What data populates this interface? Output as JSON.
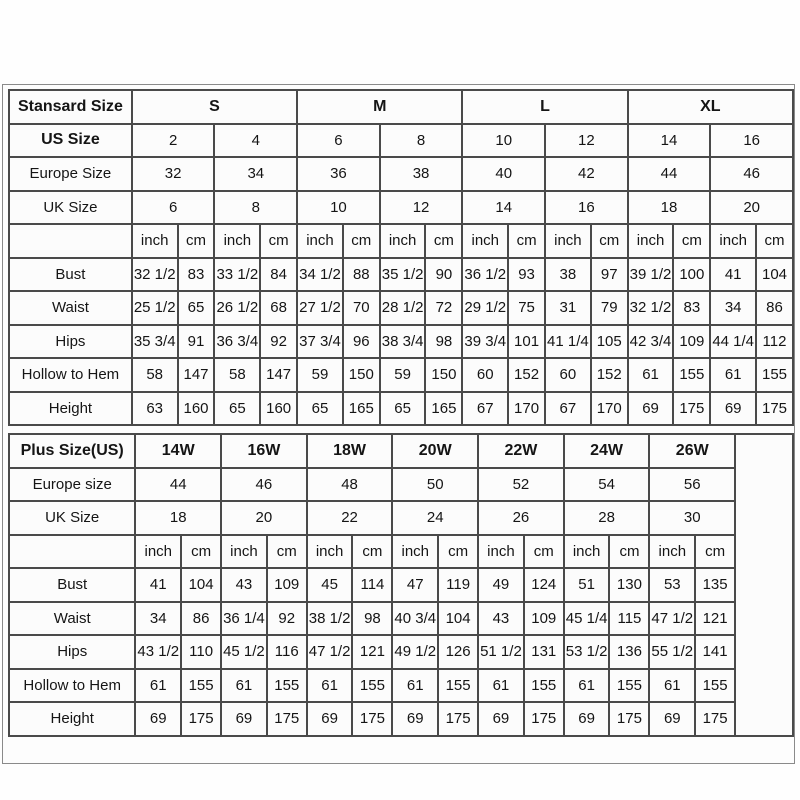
{
  "page": {
    "background": "#fefefe",
    "frame_border_color": "#8a8a8a",
    "cell_border_color": "#4a4a4a",
    "cell_background": "#fcfcfc",
    "text_color": "#151515"
  },
  "chart_data": [
    {
      "type": "table",
      "title": "Stansard Size",
      "size_groups": [
        "S",
        "M",
        "L",
        "XL"
      ],
      "group_colspan": 4,
      "value_colspan": 2,
      "label_col_width": 130,
      "data_col_width": 41,
      "data_col_count": 16,
      "trailing_empty_col_width": 0,
      "header_rows": [
        {
          "label": "US Size",
          "bold": true,
          "values": [
            "2",
            "4",
            "6",
            "8",
            "10",
            "12",
            "14",
            "16"
          ]
        },
        {
          "label": "Europe Size",
          "bold": false,
          "values": [
            "32",
            "34",
            "36",
            "38",
            "40",
            "42",
            "44",
            "46"
          ]
        },
        {
          "label": "UK Size",
          "bold": false,
          "values": [
            "6",
            "8",
            "10",
            "12",
            "14",
            "16",
            "18",
            "20"
          ]
        }
      ],
      "unit_row": {
        "label": "",
        "units": [
          "inch",
          "cm"
        ],
        "repeat": 8
      },
      "measurement_rows": [
        {
          "label": "Bust",
          "values": [
            "32 1/2",
            "83",
            "33 1/2",
            "84",
            "34 1/2",
            "88",
            "35 1/2",
            "90",
            "36 1/2",
            "93",
            "38",
            "97",
            "39 1/2",
            "100",
            "41",
            "104"
          ]
        },
        {
          "label": "Waist",
          "values": [
            "25 1/2",
            "65",
            "26 1/2",
            "68",
            "27 1/2",
            "70",
            "28 1/2",
            "72",
            "29 1/2",
            "75",
            "31",
            "79",
            "32 1/2",
            "83",
            "34",
            "86"
          ]
        },
        {
          "label": "Hips",
          "values": [
            "35 3/4",
            "91",
            "36 3/4",
            "92",
            "37 3/4",
            "96",
            "38 3/4",
            "98",
            "39 3/4",
            "101",
            "41 1/4",
            "105",
            "42 3/4",
            "109",
            "44 1/4",
            "112"
          ]
        },
        {
          "label": "Hollow to Hem",
          "values": [
            "58",
            "147",
            "58",
            "147",
            "59",
            "150",
            "59",
            "150",
            "60",
            "152",
            "60",
            "152",
            "61",
            "155",
            "61",
            "155"
          ]
        },
        {
          "label": "Height",
          "values": [
            "63",
            "160",
            "65",
            "160",
            "65",
            "165",
            "65",
            "165",
            "67",
            "170",
            "67",
            "170",
            "69",
            "175",
            "69",
            "175"
          ]
        }
      ]
    },
    {
      "type": "table",
      "title": "Plus Size(US)",
      "size_groups": [
        "14W",
        "16W",
        "18W",
        "20W",
        "22W",
        "24W",
        "26W"
      ],
      "group_colspan": 2,
      "value_colspan": 2,
      "label_col_width": 130,
      "data_col_width": 42,
      "data_col_count": 14,
      "trailing_empty_col_width": 68,
      "header_rows": [
        {
          "label": "Europe size",
          "bold": false,
          "values": [
            "44",
            "46",
            "48",
            "50",
            "52",
            "54",
            "56"
          ]
        },
        {
          "label": "UK Size",
          "bold": false,
          "values": [
            "18",
            "20",
            "22",
            "24",
            "26",
            "28",
            "30"
          ]
        }
      ],
      "unit_row": {
        "label": "",
        "units": [
          "inch",
          "cm"
        ],
        "repeat": 7
      },
      "measurement_rows": [
        {
          "label": "Bust",
          "values": [
            "41",
            "104",
            "43",
            "109",
            "45",
            "114",
            "47",
            "119",
            "49",
            "124",
            "51",
            "130",
            "53",
            "135"
          ]
        },
        {
          "label": "Waist",
          "values": [
            "34",
            "86",
            "36 1/4",
            "92",
            "38 1/2",
            "98",
            "40 3/4",
            "104",
            "43",
            "109",
            "45 1/4",
            "115",
            "47 1/2",
            "121"
          ]
        },
        {
          "label": "Hips",
          "values": [
            "43 1/2",
            "110",
            "45 1/2",
            "116",
            "47 1/2",
            "121",
            "49 1/2",
            "126",
            "51 1/2",
            "131",
            "53 1/2",
            "136",
            "55 1/2",
            "141"
          ]
        },
        {
          "label": "Hollow to Hem",
          "values": [
            "61",
            "155",
            "61",
            "155",
            "61",
            "155",
            "61",
            "155",
            "61",
            "155",
            "61",
            "155",
            "61",
            "155"
          ]
        },
        {
          "label": "Height",
          "values": [
            "69",
            "175",
            "69",
            "175",
            "69",
            "175",
            "69",
            "175",
            "69",
            "175",
            "69",
            "175",
            "69",
            "175"
          ]
        }
      ]
    }
  ]
}
